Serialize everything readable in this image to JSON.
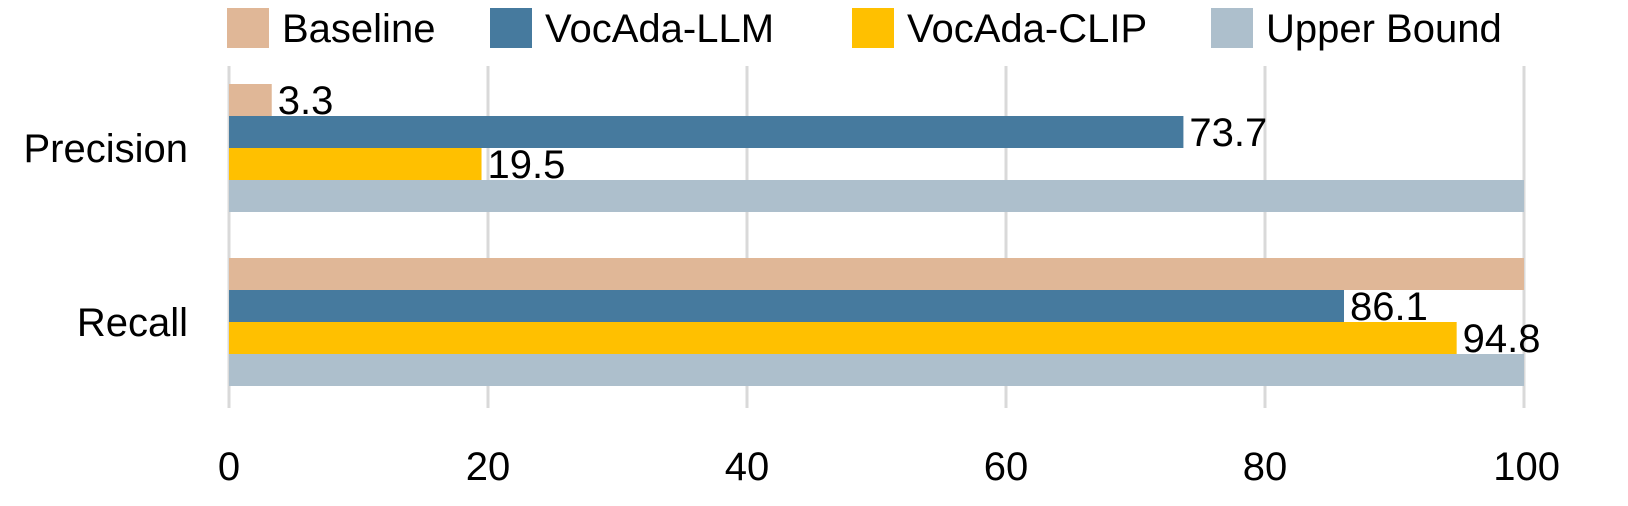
{
  "chart_data": {
    "type": "bar",
    "orientation": "horizontal",
    "categories": [
      "Precision",
      "Recall"
    ],
    "series": [
      {
        "name": "Baseline",
        "color": "#e0b797",
        "values": [
          3.3,
          100
        ],
        "labels": [
          "3.3",
          ""
        ]
      },
      {
        "name": "VocAda-LLM",
        "color": "#467a9e",
        "values": [
          73.7,
          86.1
        ],
        "labels": [
          "73.7",
          "86.1"
        ]
      },
      {
        "name": "VocAda-CLIP",
        "color": "#ffc000",
        "values": [
          19.5,
          94.8
        ],
        "labels": [
          "19.5",
          "94.8"
        ]
      },
      {
        "name": "Upper Bound",
        "color": "#adbfcc",
        "values": [
          100,
          100
        ],
        "labels": [
          "",
          ""
        ]
      }
    ],
    "xlim": [
      0,
      100
    ],
    "xticks": [
      "0",
      "20",
      "40",
      "60",
      "80",
      "100"
    ],
    "grid": true,
    "legend": "top"
  }
}
